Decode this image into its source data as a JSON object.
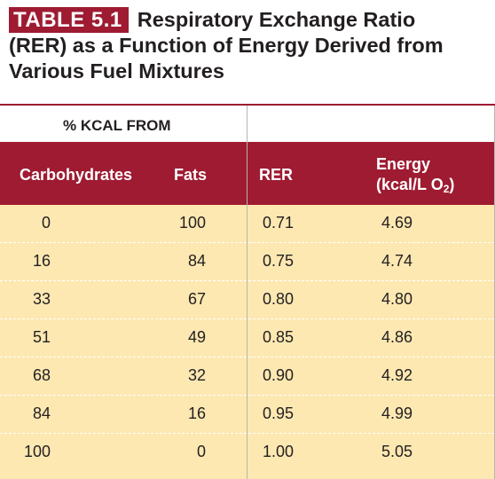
{
  "table": {
    "badge": "TABLE 5.1",
    "title_line1": "Respiratory Exchange Ratio",
    "title_line2": "(RER) as a Function of Energy Derived from",
    "title_line3": "Various Fuel Mixtures",
    "group_label": "% KCAL FROM",
    "columns": {
      "carbohydrates": "Carbohydrates",
      "fats": "Fats",
      "rer": "RER",
      "energy_line1": "Energy",
      "energy_line2_prefix": "(kcal/L O",
      "energy_line2_sub": "2",
      "energy_line2_suffix": ")"
    },
    "rows": [
      {
        "carbohydrates": "0",
        "fats": "100",
        "rer": "0.71",
        "energy": "4.69"
      },
      {
        "carbohydrates": "16",
        "fats": "84",
        "rer": "0.75",
        "energy": "4.74"
      },
      {
        "carbohydrates": "33",
        "fats": "67",
        "rer": "0.80",
        "energy": "4.80"
      },
      {
        "carbohydrates": "51",
        "fats": "49",
        "rer": "0.85",
        "energy": "4.86"
      },
      {
        "carbohydrates": "68",
        "fats": "32",
        "rer": "0.90",
        "energy": "4.92"
      },
      {
        "carbohydrates": "84",
        "fats": "16",
        "rer": "0.95",
        "energy": "4.99"
      },
      {
        "carbohydrates": "100",
        "fats": "0",
        "rer": "1.00",
        "energy": "5.05"
      }
    ]
  },
  "colors": {
    "accent": "#9e1b32",
    "row_fill": "#fde8b2"
  }
}
